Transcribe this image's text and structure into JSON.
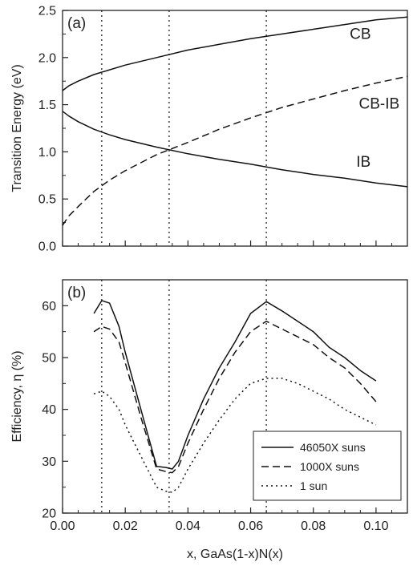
{
  "chart_data": [
    {
      "panel_tag": "(a)",
      "type": "line",
      "ylabel": "Transition Energy (eV)",
      "xlabel": "",
      "xlim": [
        0.0,
        0.11
      ],
      "ylim": [
        0.0,
        2.5
      ],
      "yticks": [
        "0.0",
        "0.5",
        "1.0",
        "1.5",
        "2.0",
        "2.5"
      ],
      "vlines": [
        0.0125,
        0.034,
        0.065
      ],
      "series": [
        {
          "name": "CB",
          "style": "solid",
          "x": [
            0.0,
            0.002,
            0.005,
            0.01,
            0.015,
            0.02,
            0.03,
            0.04,
            0.05,
            0.06,
            0.07,
            0.08,
            0.09,
            0.1,
            0.11
          ],
          "y": [
            1.65,
            1.7,
            1.75,
            1.82,
            1.87,
            1.92,
            2.0,
            2.08,
            2.14,
            2.2,
            2.25,
            2.3,
            2.35,
            2.4,
            2.43
          ]
        },
        {
          "name": "CB-IB",
          "style": "dashed",
          "x": [
            0.0,
            0.002,
            0.005,
            0.01,
            0.015,
            0.02,
            0.03,
            0.04,
            0.05,
            0.06,
            0.07,
            0.08,
            0.09,
            0.1,
            0.11
          ],
          "y": [
            0.22,
            0.32,
            0.42,
            0.58,
            0.7,
            0.8,
            0.97,
            1.1,
            1.24,
            1.36,
            1.47,
            1.56,
            1.65,
            1.73,
            1.8
          ]
        },
        {
          "name": "IB",
          "style": "solid",
          "x": [
            0.0,
            0.002,
            0.005,
            0.01,
            0.015,
            0.02,
            0.03,
            0.04,
            0.05,
            0.06,
            0.07,
            0.08,
            0.09,
            0.1,
            0.11
          ],
          "y": [
            1.43,
            1.38,
            1.32,
            1.24,
            1.18,
            1.13,
            1.05,
            0.98,
            0.92,
            0.87,
            0.81,
            0.76,
            0.72,
            0.67,
            0.63
          ]
        }
      ],
      "curve_labels": [
        {
          "text": "CB",
          "x": 0.095,
          "y": 2.2
        },
        {
          "text": "CB-IB",
          "x": 0.101,
          "y": 1.46
        },
        {
          "text": "IB",
          "x": 0.096,
          "y": 0.84
        }
      ]
    },
    {
      "panel_tag": "(b)",
      "type": "line",
      "ylabel": "Efficiency, η (%)",
      "xlabel": "x, GaAs(1-x)N(x)",
      "xlim": [
        0.0,
        0.11
      ],
      "ylim": [
        20,
        65
      ],
      "xticks": [
        "0.00",
        "0.02",
        "0.04",
        "0.06",
        "0.08",
        "0.10"
      ],
      "yticks": [
        "20",
        "30",
        "40",
        "50",
        "60"
      ],
      "vlines": [
        0.0125,
        0.034,
        0.065
      ],
      "legend": {
        "position": "bottom-right"
      },
      "series": [
        {
          "name": "46050X suns",
          "style": "solid",
          "x": [
            0.01,
            0.0125,
            0.015,
            0.018,
            0.02,
            0.025,
            0.03,
            0.033,
            0.035,
            0.037,
            0.04,
            0.045,
            0.05,
            0.055,
            0.06,
            0.065,
            0.07,
            0.075,
            0.08,
            0.085,
            0.09,
            0.095,
            0.1
          ],
          "y": [
            58.5,
            61.0,
            60.5,
            56.0,
            51.0,
            40.0,
            29.0,
            28.8,
            28.5,
            30.0,
            35.0,
            42.0,
            48.0,
            53.0,
            58.5,
            60.8,
            59.0,
            57.0,
            55.0,
            52.0,
            50.0,
            47.5,
            45.5
          ]
        },
        {
          "name": "1000X suns",
          "style": "dashed",
          "x": [
            0.01,
            0.0125,
            0.015,
            0.018,
            0.02,
            0.025,
            0.03,
            0.033,
            0.035,
            0.037,
            0.04,
            0.045,
            0.05,
            0.055,
            0.06,
            0.065,
            0.07,
            0.075,
            0.08,
            0.085,
            0.09,
            0.095,
            0.1
          ],
          "y": [
            55.0,
            56.0,
            55.5,
            53.0,
            49.0,
            38.5,
            28.5,
            28.0,
            27.8,
            29.0,
            33.5,
            40.0,
            46.0,
            51.0,
            55.0,
            57.0,
            55.5,
            54.0,
            52.5,
            50.0,
            48.0,
            45.0,
            41.5
          ]
        },
        {
          "name": "1 sun",
          "style": "dotted",
          "x": [
            0.01,
            0.0125,
            0.015,
            0.018,
            0.02,
            0.025,
            0.03,
            0.033,
            0.035,
            0.037,
            0.04,
            0.045,
            0.05,
            0.055,
            0.06,
            0.065,
            0.07,
            0.075,
            0.08,
            0.085,
            0.09,
            0.095,
            0.1
          ],
          "y": [
            43.0,
            43.5,
            42.5,
            40.0,
            37.0,
            31.0,
            25.0,
            24.2,
            24.0,
            25.0,
            28.5,
            33.5,
            38.0,
            42.0,
            45.0,
            46.0,
            46.0,
            45.0,
            43.5,
            42.0,
            40.0,
            38.5,
            37.0
          ]
        }
      ]
    }
  ]
}
